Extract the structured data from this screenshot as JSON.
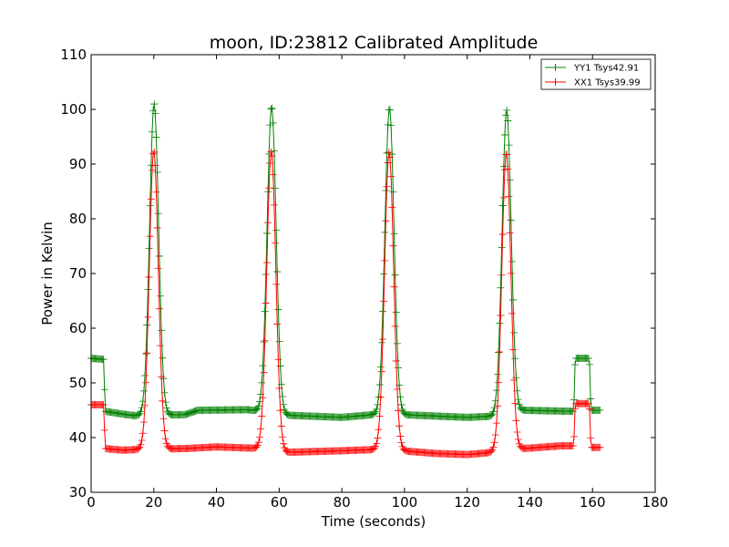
{
  "chart_data": {
    "type": "line",
    "title": "moon, ID:23812 Calibrated Amplitude",
    "xlabel": "Time (seconds)",
    "ylabel": "Power in Kelvin",
    "xlim": [
      0,
      180
    ],
    "ylim": [
      30,
      110
    ],
    "xticks": [
      0,
      20,
      40,
      60,
      80,
      100,
      120,
      140,
      160,
      180
    ],
    "yticks": [
      30,
      40,
      50,
      60,
      70,
      80,
      90,
      100,
      110
    ],
    "grid": false,
    "legend_position": "top-right",
    "marker": "plus",
    "series": [
      {
        "name": "YY1 Tsys42.91",
        "color": "#008000",
        "baseline": [
          [
            0,
            54.5
          ],
          [
            4,
            54.3
          ],
          [
            4.5,
            44.8
          ],
          [
            10,
            44.3
          ],
          [
            14,
            44.0
          ],
          [
            30,
            44.2
          ],
          [
            34,
            45.0
          ],
          [
            50,
            45.1
          ],
          [
            54,
            44.8
          ],
          [
            62,
            44.1
          ],
          [
            80,
            43.7
          ],
          [
            90,
            44.2
          ],
          [
            99,
            44.2
          ],
          [
            120,
            43.7
          ],
          [
            128,
            43.9
          ],
          [
            138,
            45.0
          ],
          [
            154,
            44.8
          ],
          [
            154.5,
            54.5
          ],
          [
            159,
            54.5
          ],
          [
            159.5,
            45.0
          ],
          [
            163,
            45.0
          ]
        ],
        "peaks": [
          {
            "center": 20.1,
            "height": 101.0
          },
          {
            "center": 57.6,
            "height": 100.5
          },
          {
            "center": 95.2,
            "height": 100.3
          },
          {
            "center": 132.6,
            "height": 99.9
          }
        ]
      },
      {
        "name": "XX1 Tsys39.99",
        "color": "#ff0000",
        "baseline": [
          [
            0,
            46.0
          ],
          [
            4,
            46.0
          ],
          [
            4.5,
            38.0
          ],
          [
            10,
            37.7
          ],
          [
            14,
            37.8
          ],
          [
            30,
            38.0
          ],
          [
            40,
            38.3
          ],
          [
            50,
            38.1
          ],
          [
            54,
            38.0
          ],
          [
            62,
            37.3
          ],
          [
            80,
            37.6
          ],
          [
            90,
            37.8
          ],
          [
            99,
            37.6
          ],
          [
            110,
            37.1
          ],
          [
            120,
            36.9
          ],
          [
            128,
            37.3
          ],
          [
            138,
            38.0
          ],
          [
            150,
            38.5
          ],
          [
            154,
            38.5
          ],
          [
            154.5,
            46.2
          ],
          [
            159,
            46.2
          ],
          [
            159.5,
            38.2
          ],
          [
            163,
            38.2
          ]
        ],
        "peaks": [
          {
            "center": 20.0,
            "height": 92.4
          },
          {
            "center": 57.5,
            "height": 92.3
          },
          {
            "center": 95.1,
            "height": 92.2
          },
          {
            "center": 132.5,
            "height": 92.1
          }
        ]
      }
    ]
  }
}
